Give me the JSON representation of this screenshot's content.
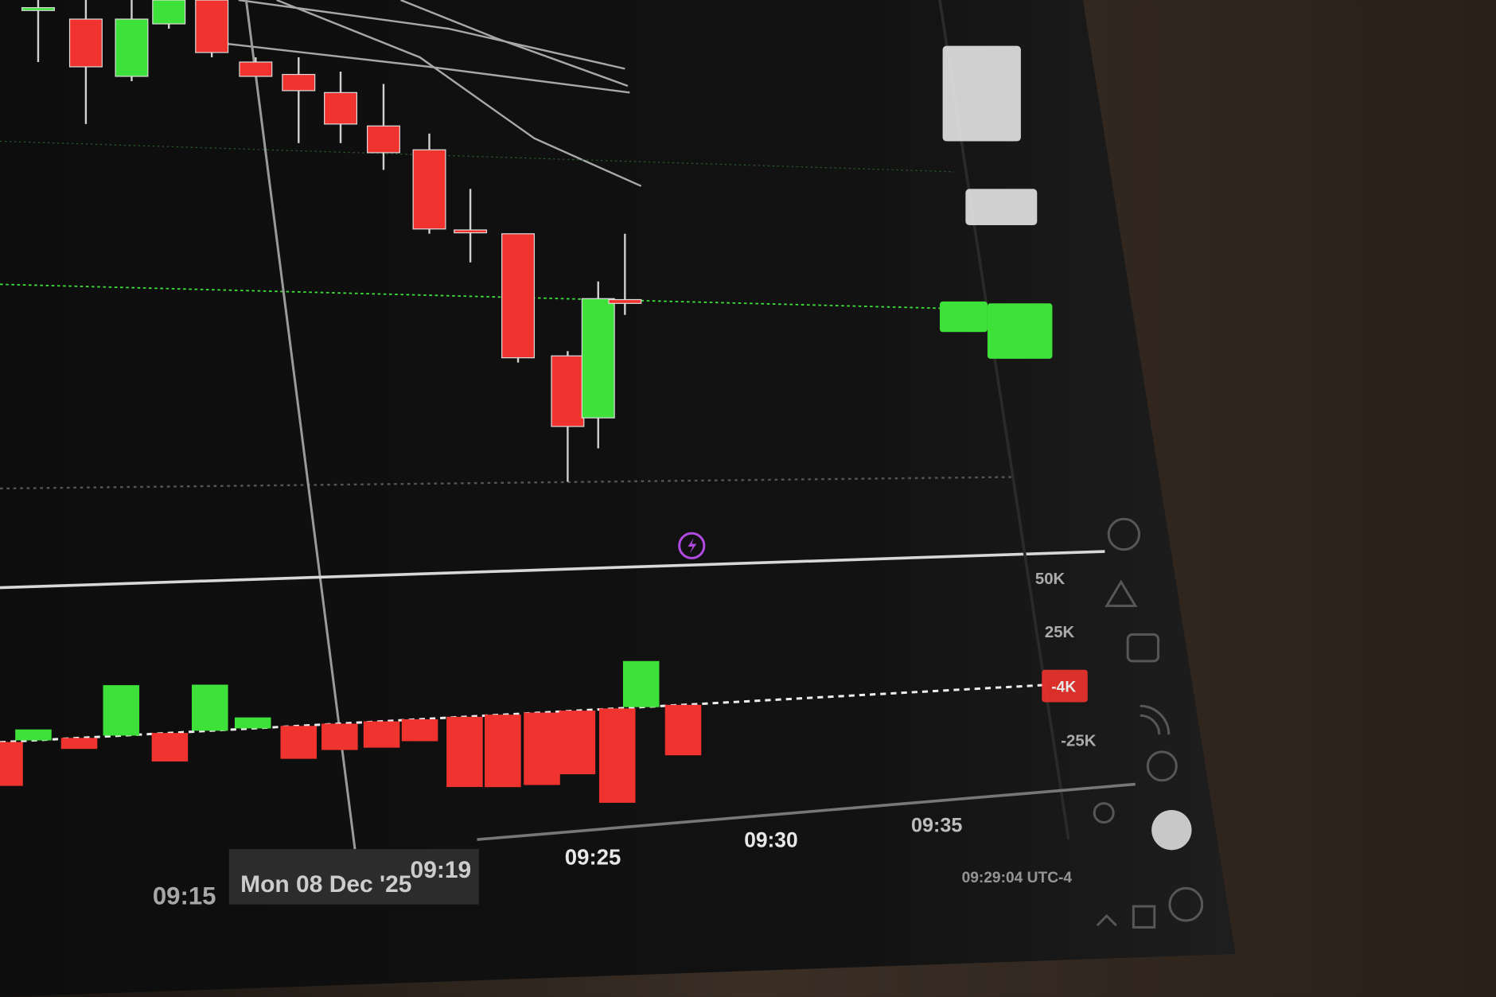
{
  "colors": {
    "up": "#3ee03a",
    "down": "#f0332e",
    "background": "#101010",
    "bezel": "#3a2e25",
    "accent": "#b04ae0"
  },
  "time_axis": {
    "labels": [
      "09:15",
      "09:25",
      "09:30",
      "09:35"
    ],
    "crosshair_date": "Mon 08 Dec '25",
    "crosshair_time": "09:19"
  },
  "status_bar": {
    "clock": "09:29:04 UTC-4"
  },
  "volume_axis": {
    "labels": [
      "50K",
      "25K",
      "-25K"
    ],
    "last_value": "-4K"
  },
  "chart_data": [
    {
      "type": "candlestick",
      "xlabel": "",
      "ylabel": "",
      "grid": false,
      "note_units": "relative",
      "candles": [
        {
          "o": 59.0,
          "h": 60.0,
          "l": 53.5,
          "c": 59.2,
          "dir": "up"
        },
        {
          "o": 58.0,
          "h": 60.0,
          "l": 47.0,
          "c": 53.0,
          "dir": "down"
        },
        {
          "o": 52.0,
          "h": 60.0,
          "l": 51.5,
          "c": 58.0,
          "dir": "up"
        },
        {
          "o": 57.5,
          "h": 60.0,
          "l": 57.0,
          "c": 60.0,
          "dir": "up"
        },
        {
          "o": 60.0,
          "h": 60.0,
          "l": 54.0,
          "c": 54.5,
          "dir": "down"
        },
        {
          "o": 53.5,
          "h": 54.0,
          "l": 52.0,
          "c": 52.0,
          "dir": "down"
        },
        {
          "o": 52.2,
          "h": 54.0,
          "l": 45.0,
          "c": 50.5,
          "dir": "down"
        },
        {
          "o": 50.3,
          "h": 52.5,
          "l": 45.0,
          "c": 47.0,
          "dir": "down"
        },
        {
          "o": 46.8,
          "h": 51.2,
          "l": 42.2,
          "c": 44.0,
          "dir": "down"
        },
        {
          "o": 44.3,
          "h": 46.0,
          "l": 35.5,
          "c": 36.0,
          "dir": "down"
        },
        {
          "o": 35.9,
          "h": 40.2,
          "l": 32.5,
          "c": 35.6,
          "dir": "down"
        },
        {
          "o": 35.5,
          "h": 35.5,
          "l": 22.0,
          "c": 22.5,
          "dir": "down"
        },
        {
          "o": 22.7,
          "h": 23.2,
          "l": 9.5,
          "c": 15.3,
          "dir": "down"
        },
        {
          "o": 16.2,
          "h": 30.5,
          "l": 13.0,
          "c": 28.7,
          "dir": "up"
        },
        {
          "o": 28.6,
          "h": 35.5,
          "l": 27.0,
          "c": 28.2,
          "dir": "down"
        }
      ]
    },
    {
      "type": "bar",
      "ylabel": "",
      "ylim": [
        -50,
        50
      ],
      "yticks": [
        "50K",
        "25K",
        "-25K"
      ],
      "values_k": [
        -20,
        5,
        -5,
        23,
        -13,
        21,
        5,
        -15,
        -12,
        -12,
        -10,
        -32,
        -33,
        -33,
        -29,
        -43,
        21,
        -23
      ]
    }
  ]
}
